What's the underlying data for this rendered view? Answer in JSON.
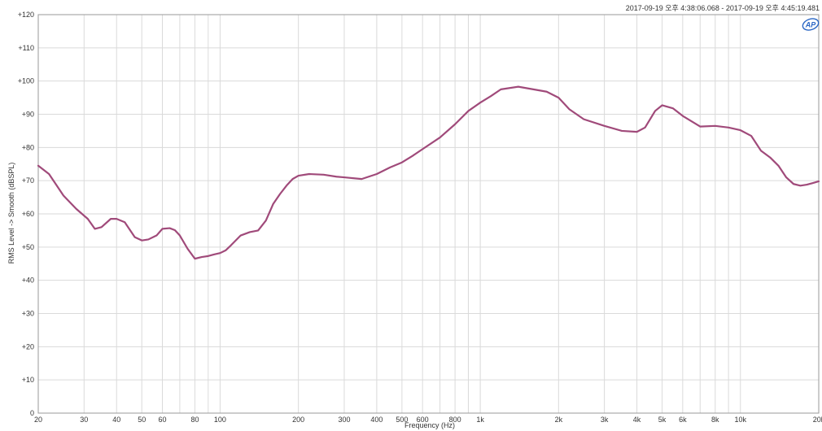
{
  "chart_data": {
    "type": "line",
    "title": "",
    "timestamp": "2017-09-19 오후 4:38:06.068 - 2017-09-19 오후 4:45:19.481",
    "xlabel": "Frequency (Hz)",
    "ylabel": "RMS Level -> Smooth (dBSPL)",
    "x_scale": "log",
    "xlim": [
      20,
      20000
    ],
    "ylim": [
      0,
      120
    ],
    "grid": true,
    "legend": "none",
    "logo_text": "AP",
    "x_ticks": [
      {
        "value": 20,
        "label": "20"
      },
      {
        "value": 30,
        "label": "30"
      },
      {
        "value": 40,
        "label": "40"
      },
      {
        "value": 50,
        "label": "50"
      },
      {
        "value": 60,
        "label": "60"
      },
      {
        "value": 80,
        "label": "80"
      },
      {
        "value": 100,
        "label": "100"
      },
      {
        "value": 200,
        "label": "200"
      },
      {
        "value": 300,
        "label": "300"
      },
      {
        "value": 400,
        "label": "400"
      },
      {
        "value": 500,
        "label": "500"
      },
      {
        "value": 600,
        "label": "600"
      },
      {
        "value": 800,
        "label": "800"
      },
      {
        "value": 1000,
        "label": "1k"
      },
      {
        "value": 2000,
        "label": "2k"
      },
      {
        "value": 3000,
        "label": "3k"
      },
      {
        "value": 4000,
        "label": "4k"
      },
      {
        "value": 5000,
        "label": "5k"
      },
      {
        "value": 6000,
        "label": "6k"
      },
      {
        "value": 8000,
        "label": "8k"
      },
      {
        "value": 10000,
        "label": "10k"
      },
      {
        "value": 20000,
        "label": "20k"
      }
    ],
    "x_minor_grid": [
      70,
      90,
      700,
      900,
      7000,
      9000
    ],
    "y_ticks": [
      {
        "value": 0,
        "label": "0"
      },
      {
        "value": 10,
        "label": "+10"
      },
      {
        "value": 20,
        "label": "+20"
      },
      {
        "value": 30,
        "label": "+30"
      },
      {
        "value": 40,
        "label": "+40"
      },
      {
        "value": 50,
        "label": "+50"
      },
      {
        "value": 60,
        "label": "+60"
      },
      {
        "value": 70,
        "label": "+70"
      },
      {
        "value": 80,
        "label": "+80"
      },
      {
        "value": 90,
        "label": "+90"
      },
      {
        "value": 100,
        "label": "+100"
      },
      {
        "value": 110,
        "label": "+110"
      },
      {
        "value": 120,
        "label": "+120"
      }
    ],
    "series": [
      {
        "color": "#a04a7a",
        "x": [
          20,
          22,
          25,
          28,
          31,
          33,
          35,
          38,
          40,
          43,
          47,
          50,
          53,
          57,
          60,
          64,
          67,
          70,
          75,
          80,
          85,
          90,
          95,
          100,
          105,
          110,
          120,
          130,
          140,
          150,
          160,
          170,
          180,
          190,
          200,
          220,
          250,
          280,
          300,
          350,
          400,
          450,
          500,
          550,
          600,
          700,
          800,
          900,
          1000,
          1100,
          1200,
          1400,
          1600,
          1800,
          2000,
          2200,
          2500,
          3000,
          3500,
          4000,
          4300,
          4700,
          5000,
          5500,
          6000,
          7000,
          8000,
          9000,
          10000,
          11000,
          12000,
          13000,
          14000,
          15000,
          16000,
          17000,
          18000,
          19000,
          20000
        ],
        "y": [
          74.5,
          72,
          65.5,
          61.5,
          58.5,
          55.5,
          56,
          58.5,
          58.5,
          57.5,
          53,
          52,
          52.3,
          53.5,
          55.5,
          55.7,
          55.1,
          53.5,
          49.5,
          46.5,
          47,
          47.3,
          47.8,
          48.2,
          49,
          50.5,
          53.5,
          54.5,
          55,
          58,
          63,
          66,
          68.5,
          70.5,
          71.5,
          72,
          71.8,
          71.2,
          71,
          70.5,
          72,
          74,
          75.5,
          77.5,
          79.5,
          83,
          87,
          91,
          93.5,
          95.5,
          97.5,
          98.3,
          97.5,
          96.8,
          95,
          91.5,
          88.5,
          86.5,
          85,
          84.7,
          86,
          91,
          92.7,
          91.8,
          89.5,
          86.3,
          86.5,
          86,
          85.2,
          83.5,
          79,
          77,
          74.5,
          71,
          69,
          68.5,
          68.8,
          69.3,
          69.8
        ]
      }
    ]
  }
}
